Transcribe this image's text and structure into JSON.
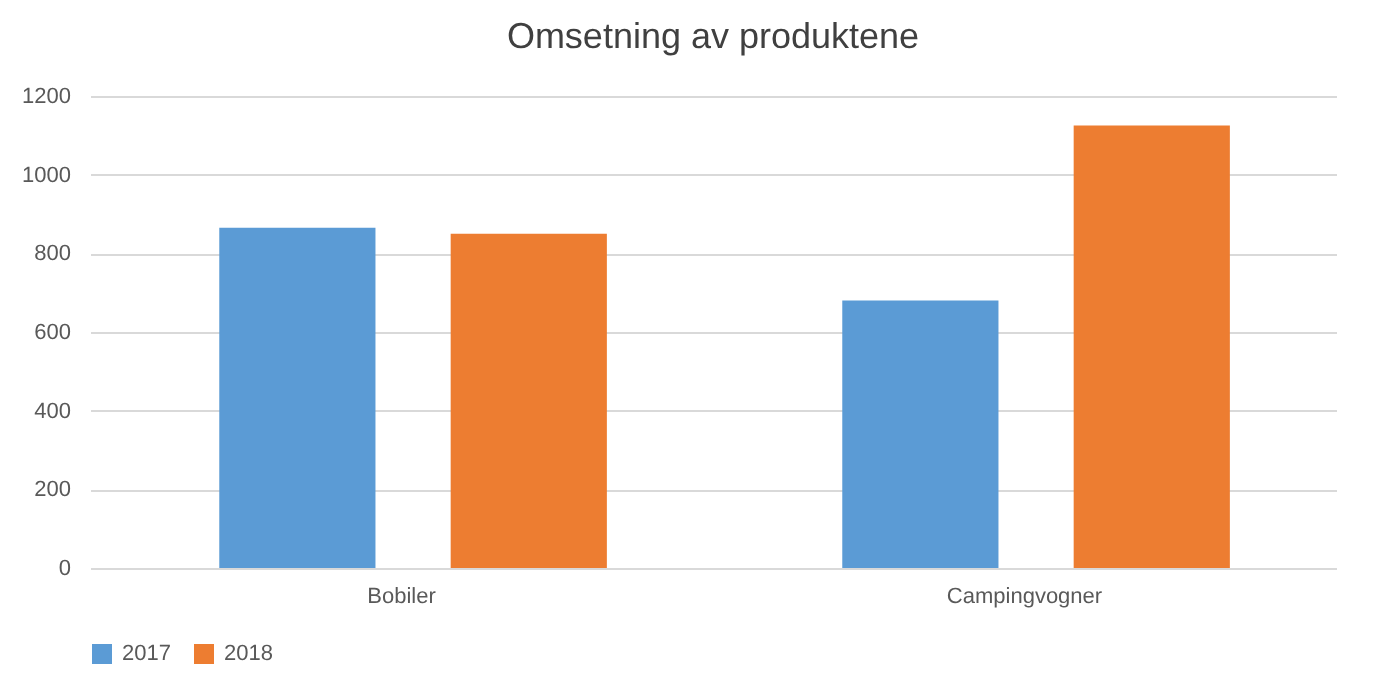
{
  "chart_data": {
    "type": "bar",
    "title": "Omsetning av produktene",
    "categories": [
      "Bobiler",
      "Campingvogner"
    ],
    "series": [
      {
        "name": "2017",
        "color": "#5b9bd5",
        "values": [
          865,
          680
        ]
      },
      {
        "name": "2018",
        "color": "#ed7d31",
        "values": [
          850,
          1125
        ]
      }
    ],
    "ylim": [
      0,
      1200
    ],
    "yticks": [
      0,
      200,
      400,
      600,
      800,
      1000,
      1200
    ],
    "grid": "y",
    "legend": "bottom"
  }
}
